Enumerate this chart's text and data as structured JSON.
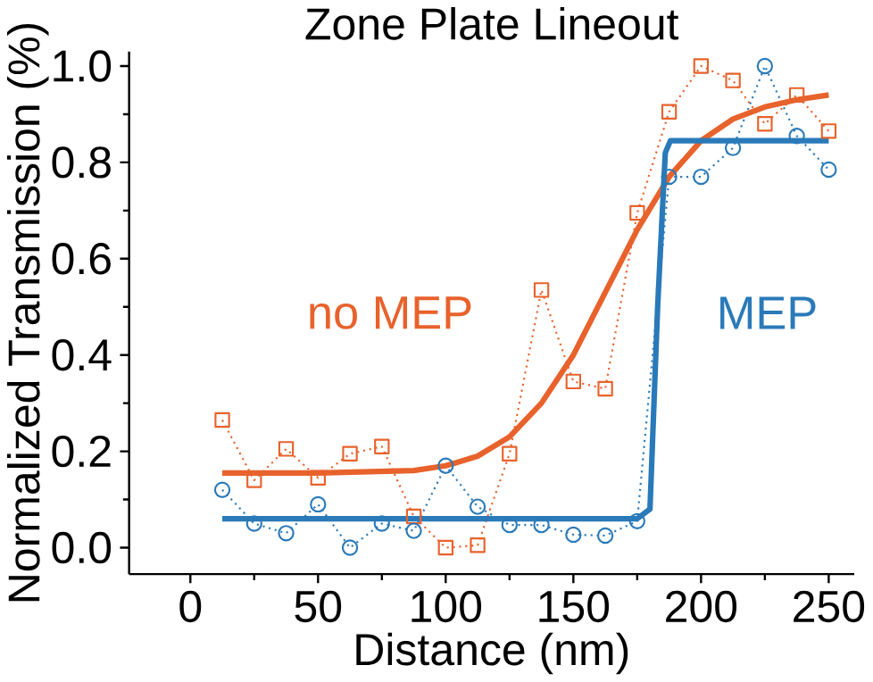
{
  "chart_data": {
    "type": "line",
    "title": "Zone Plate Lineout",
    "xlabel": "Distance (nm)",
    "ylabel": "Normalized Transmission (%)",
    "xlim": [
      -24,
      260
    ],
    "ylim": [
      -0.055,
      1.03
    ],
    "xticks": [
      0,
      50,
      100,
      150,
      200,
      250
    ],
    "yticks": [
      {
        "value": 0,
        "label": "0.0"
      },
      {
        "value": 0.2,
        "label": "0.2"
      },
      {
        "value": 0.4,
        "label": "0.4"
      },
      {
        "value": 0.6,
        "label": "0.6"
      },
      {
        "value": 0.8,
        "label": "0.8"
      },
      {
        "value": 1,
        "label": "1.0"
      }
    ],
    "grid": false,
    "series": [
      {
        "name": "no MEP",
        "color": "#e8622c",
        "marker": "square",
        "line_style": "dotted",
        "x": [
          12.5,
          25,
          37.5,
          50,
          62.5,
          75,
          87.5,
          100,
          112.5,
          125,
          137.5,
          150,
          162.5,
          175,
          187.5,
          200,
          212.5,
          225,
          237.5,
          250
        ],
        "values": [
          0.265,
          0.14,
          0.205,
          0.145,
          0.195,
          0.21,
          0.065,
          0.0,
          0.005,
          0.195,
          0.535,
          0.345,
          0.33,
          0.695,
          0.905,
          1.0,
          0.97,
          0.88,
          0.94,
          0.865
        ]
      },
      {
        "name": "MEP",
        "color": "#2a7ab9",
        "marker": "circle",
        "line_style": "dotted",
        "x": [
          12.5,
          25,
          37.5,
          50,
          62.5,
          75,
          87.5,
          100,
          112.5,
          125,
          137.5,
          150,
          162.5,
          175,
          187.5,
          200,
          212.5,
          225,
          237.5,
          250
        ],
        "values": [
          0.12,
          0.05,
          0.03,
          0.09,
          0.0,
          0.05,
          0.035,
          0.17,
          0.085,
          0.047,
          0.047,
          0.027,
          0.025,
          0.055,
          0.77,
          0.77,
          0.83,
          1.0,
          0.855,
          0.785
        ]
      },
      {
        "color": "#e8622c",
        "marker": "none",
        "line_style": "solid",
        "x": [
          12.5,
          50,
          87.5,
          100,
          112.5,
          125,
          137.5,
          150,
          162.5,
          175,
          187.5,
          200,
          212.5,
          225,
          237.5,
          250
        ],
        "values": [
          0.155,
          0.155,
          0.16,
          0.17,
          0.19,
          0.23,
          0.3,
          0.4,
          0.53,
          0.66,
          0.77,
          0.845,
          0.89,
          0.915,
          0.93,
          0.94
        ]
      },
      {
        "color": "#2a7ab9",
        "marker": "none",
        "line_style": "solid",
        "x": [
          12.5,
          175,
          180,
          183,
          186,
          188,
          250
        ],
        "values": [
          0.06,
          0.06,
          0.08,
          0.5,
          0.82,
          0.845,
          0.845
        ]
      }
    ]
  }
}
